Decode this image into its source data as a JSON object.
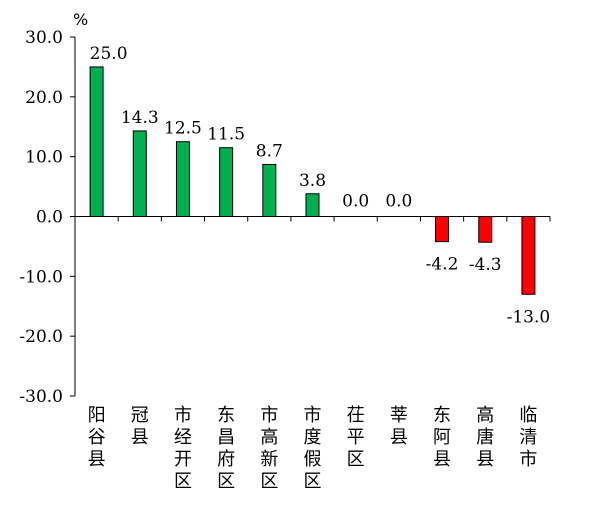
{
  "chart_data": {
    "type": "bar",
    "title": "",
    "xlabel": "",
    "ylabel": "%",
    "ylim": [
      -30,
      30
    ],
    "yticks": [
      30,
      20,
      10,
      0,
      -10,
      -20,
      -30
    ],
    "ytick_labels": [
      "30.0",
      "20.0",
      "10.0",
      "0.0",
      "-10.0",
      "-20.0",
      "-30.0"
    ],
    "grid": false,
    "legend": "none",
    "categories": [
      "阳谷县",
      "冠县",
      "市经开区",
      "东昌府区",
      "市高新区",
      "市度假区",
      "茌平区",
      "莘县",
      "东阿县",
      "高唐县",
      "临清市"
    ],
    "values": [
      25.0,
      14.3,
      12.5,
      11.5,
      8.7,
      3.8,
      0.0,
      0.0,
      -4.2,
      -4.3,
      -13.0
    ],
    "value_labels": [
      "25.0",
      "14.3",
      "12.5",
      "11.5",
      "8.7",
      "3.8",
      "0.0",
      "0.0",
      "-4.2",
      "-4.3",
      "-13.0"
    ],
    "colors": {
      "positive": "#00b050",
      "negative": "#ff0000",
      "stroke": "#000000"
    }
  }
}
